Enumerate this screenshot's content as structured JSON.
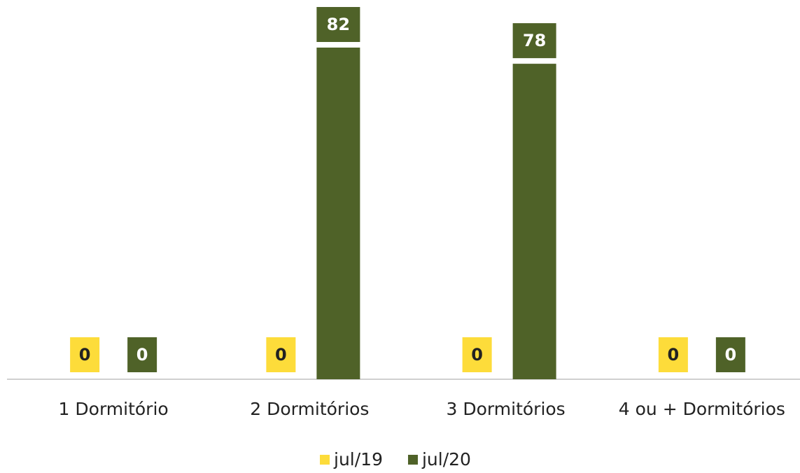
{
  "chart_data": {
    "type": "bar",
    "categories": [
      "1 Dormitório",
      "2 Dormitórios",
      "3 Dormitórios",
      "4 ou + Dormitórios"
    ],
    "series": [
      {
        "name": "jul/19",
        "color": "#fddc3a",
        "values": [
          0,
          0,
          0,
          0
        ]
      },
      {
        "name": "jul/20",
        "color": "#4f6228",
        "values": [
          0,
          82,
          78,
          0
        ]
      }
    ],
    "legend": "bottom"
  }
}
